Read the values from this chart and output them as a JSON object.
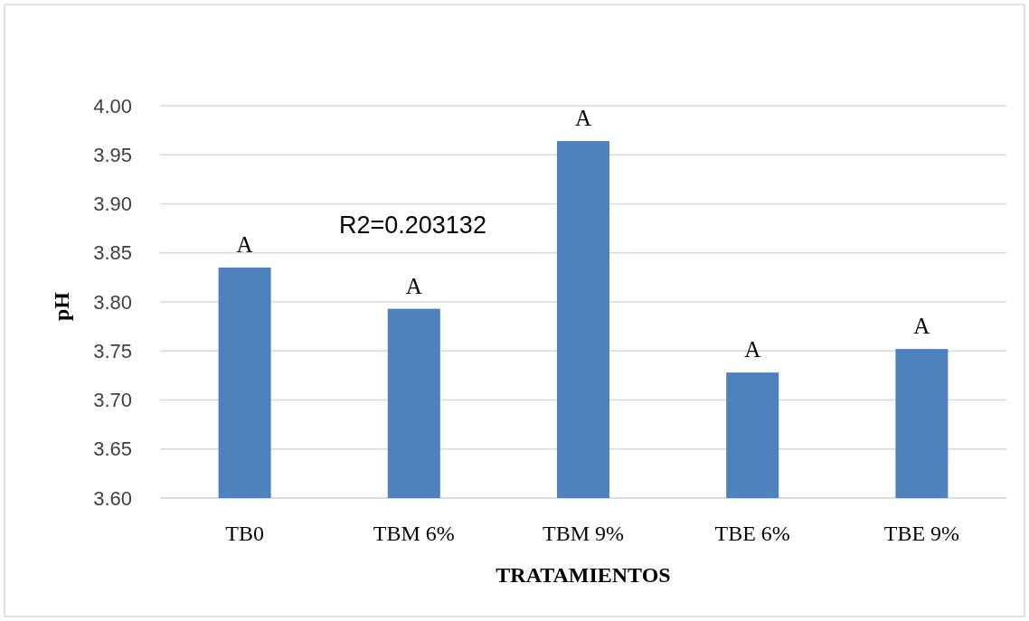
{
  "chart_data": {
    "type": "bar",
    "xlabel": "TRATAMIENTOS",
    "ylabel": "pH",
    "categories": [
      "TB0",
      "TBM 6%",
      "TBM 9%",
      "TBE 6%",
      "TBE 9%"
    ],
    "values": [
      3.835,
      3.793,
      3.964,
      3.728,
      3.752
    ],
    "value_labels": [
      "A",
      "A",
      "A",
      "A",
      "A"
    ],
    "color": "#4f81bd",
    "ylim": [
      3.6,
      4.0
    ],
    "yticks": [
      {
        "value": 3.6,
        "label": "3.60"
      },
      3.65,
      {
        "value": 3.7,
        "label": "3.70"
      },
      3.75,
      {
        "value": 3.8,
        "label": "3.80"
      },
      3.85,
      {
        "value": 3.9,
        "label": "3.90"
      },
      3.95,
      {
        "value": 4.0,
        "label": "4.00"
      }
    ],
    "grid": "y",
    "annotations": [
      "R2=0.203132"
    ]
  }
}
